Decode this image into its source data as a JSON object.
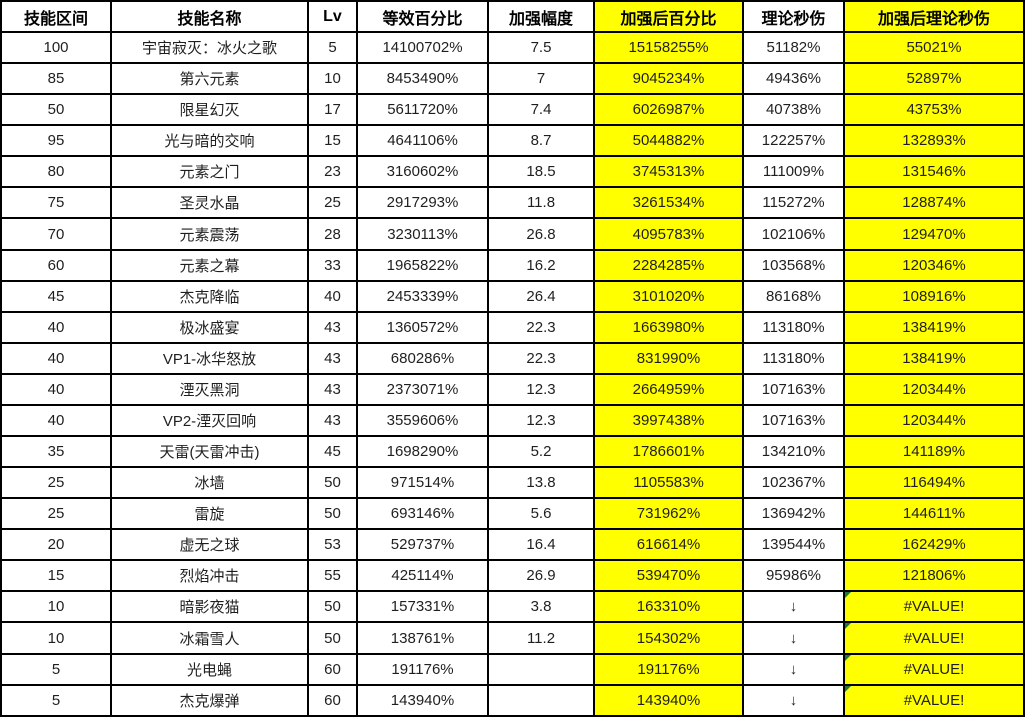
{
  "colors": {
    "highlight": "#ffff00",
    "border": "#000000",
    "text": "#1f1f1f",
    "error_indicator": "#1e7b34"
  },
  "table": {
    "columns": [
      "技能区间",
      "技能名称",
      "Lv",
      "等效百分比",
      "加强幅度",
      "加强后百分比",
      "理论秒伤",
      "加强后理论秒伤"
    ],
    "rows": [
      {
        "range": "100",
        "name": "宇宙寂灭：冰火之歌",
        "lv": "5",
        "eq_pct": "14100702%",
        "boost": "7.5",
        "boosted_pct": "15158255%",
        "dps": "51182%",
        "boosted_dps": "55021%",
        "dps_error": false
      },
      {
        "range": "85",
        "name": "第六元素",
        "lv": "10",
        "eq_pct": "8453490%",
        "boost": "7",
        "boosted_pct": "9045234%",
        "dps": "49436%",
        "boosted_dps": "52897%",
        "dps_error": false
      },
      {
        "range": "50",
        "name": "限星幻灭",
        "lv": "17",
        "eq_pct": "5611720%",
        "boost": "7.4",
        "boosted_pct": "6026987%",
        "dps": "40738%",
        "boosted_dps": "43753%",
        "dps_error": false
      },
      {
        "range": "95",
        "name": "光与暗的交响",
        "lv": "15",
        "eq_pct": "4641106%",
        "boost": "8.7",
        "boosted_pct": "5044882%",
        "dps": "122257%",
        "boosted_dps": "132893%",
        "dps_error": false
      },
      {
        "range": "80",
        "name": "元素之门",
        "lv": "23",
        "eq_pct": "3160602%",
        "boost": "18.5",
        "boosted_pct": "3745313%",
        "dps": "111009%",
        "boosted_dps": "131546%",
        "dps_error": false
      },
      {
        "range": "75",
        "name": "圣灵水晶",
        "lv": "25",
        "eq_pct": "2917293%",
        "boost": "11.8",
        "boosted_pct": "3261534%",
        "dps": "115272%",
        "boosted_dps": "128874%",
        "dps_error": false
      },
      {
        "range": "70",
        "name": "元素震荡",
        "lv": "28",
        "eq_pct": "3230113%",
        "boost": "26.8",
        "boosted_pct": "4095783%",
        "dps": "102106%",
        "boosted_dps": "129470%",
        "dps_error": false
      },
      {
        "range": "60",
        "name": "元素之幕",
        "lv": "33",
        "eq_pct": "1965822%",
        "boost": "16.2",
        "boosted_pct": "2284285%",
        "dps": "103568%",
        "boosted_dps": "120346%",
        "dps_error": false
      },
      {
        "range": "45",
        "name": "杰克降临",
        "lv": "40",
        "eq_pct": "2453339%",
        "boost": "26.4",
        "boosted_pct": "3101020%",
        "dps": "86168%",
        "boosted_dps": "108916%",
        "dps_error": false
      },
      {
        "range": "40",
        "name": "极冰盛宴",
        "lv": "43",
        "eq_pct": "1360572%",
        "boost": "22.3",
        "boosted_pct": "1663980%",
        "dps": "113180%",
        "boosted_dps": "138419%",
        "dps_error": false
      },
      {
        "range": "40",
        "name": "VP1-冰华怒放",
        "lv": "43",
        "eq_pct": "680286%",
        "boost": "22.3",
        "boosted_pct": "831990%",
        "dps": "113180%",
        "boosted_dps": "138419%",
        "dps_error": false
      },
      {
        "range": "40",
        "name": "湮灭黑洞",
        "lv": "43",
        "eq_pct": "2373071%",
        "boost": "12.3",
        "boosted_pct": "2664959%",
        "dps": "107163%",
        "boosted_dps": "120344%",
        "dps_error": false
      },
      {
        "range": "40",
        "name": "VP2-湮灭回响",
        "lv": "43",
        "eq_pct": "3559606%",
        "boost": "12.3",
        "boosted_pct": "3997438%",
        "dps": "107163%",
        "boosted_dps": "120344%",
        "dps_error": false
      },
      {
        "range": "35",
        "name": "天雷(天雷冲击)",
        "lv": "45",
        "eq_pct": "1698290%",
        "boost": "5.2",
        "boosted_pct": "1786601%",
        "dps": "134210%",
        "boosted_dps": "141189%",
        "dps_error": false
      },
      {
        "range": "25",
        "name": "冰墙",
        "lv": "50",
        "eq_pct": "971514%",
        "boost": "13.8",
        "boosted_pct": "1105583%",
        "dps": "102367%",
        "boosted_dps": "116494%",
        "dps_error": false
      },
      {
        "range": "25",
        "name": "雷旋",
        "lv": "50",
        "eq_pct": "693146%",
        "boost": "5.6",
        "boosted_pct": "731962%",
        "dps": "136942%",
        "boosted_dps": "144611%",
        "dps_error": false
      },
      {
        "range": "20",
        "name": "虚无之球",
        "lv": "53",
        "eq_pct": "529737%",
        "boost": "16.4",
        "boosted_pct": "616614%",
        "dps": "139544%",
        "boosted_dps": "162429%",
        "dps_error": false
      },
      {
        "range": "15",
        "name": "烈焰冲击",
        "lv": "55",
        "eq_pct": "425114%",
        "boost": "26.9",
        "boosted_pct": "539470%",
        "dps": "95986%",
        "boosted_dps": "121806%",
        "dps_error": false
      },
      {
        "range": "10",
        "name": "暗影夜猫",
        "lv": "50",
        "eq_pct": "157331%",
        "boost": "3.8",
        "boosted_pct": "163310%",
        "dps": "↓",
        "boosted_dps": "#VALUE!",
        "dps_error": true
      },
      {
        "range": "10",
        "name": "冰霜雪人",
        "lv": "50",
        "eq_pct": "138761%",
        "boost": "11.2",
        "boosted_pct": "154302%",
        "dps": "↓",
        "boosted_dps": "#VALUE!",
        "dps_error": true
      },
      {
        "range": "5",
        "name": "光电蝇",
        "lv": "60",
        "eq_pct": "191176%",
        "boost": "",
        "boosted_pct": "191176%",
        "dps": "↓",
        "boosted_dps": "#VALUE!",
        "dps_error": true
      },
      {
        "range": "5",
        "name": "杰克爆弹",
        "lv": "60",
        "eq_pct": "143940%",
        "boost": "",
        "boosted_pct": "143940%",
        "dps": "↓",
        "boosted_dps": "#VALUE!",
        "dps_error": true
      }
    ]
  }
}
